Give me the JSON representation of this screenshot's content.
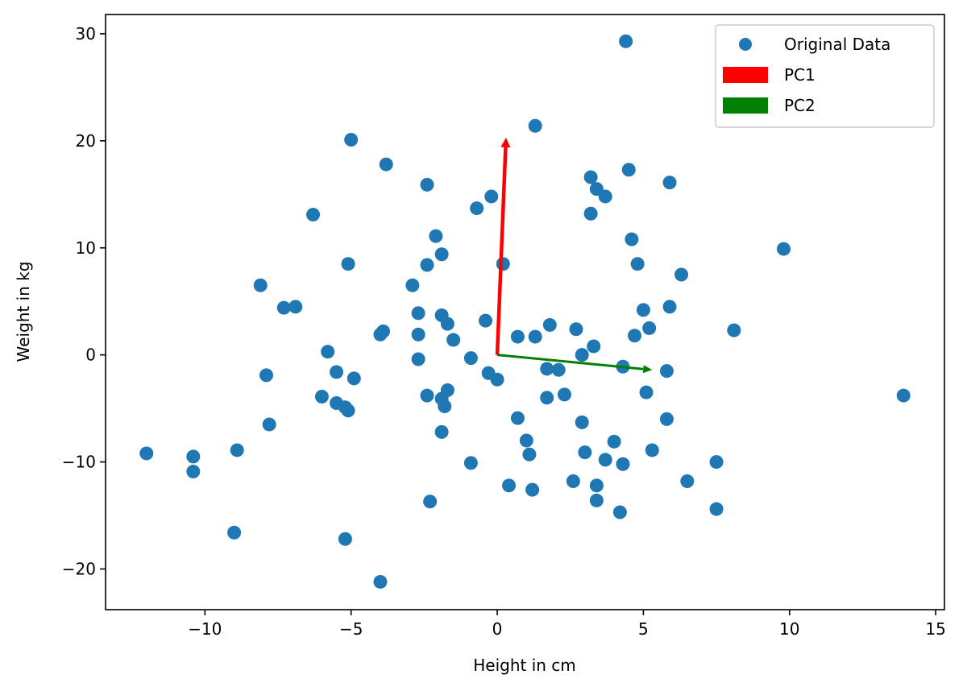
{
  "chart_data": {
    "type": "scatter",
    "xlabel": "Height in cm",
    "ylabel": "Weight in kg",
    "xlim": [
      -13.4,
      15.3
    ],
    "ylim": [
      -23.8,
      31.8
    ],
    "xticks": [
      -10,
      -5,
      0,
      5,
      10,
      15
    ],
    "yticks": [
      -20,
      -10,
      0,
      10,
      20,
      30
    ],
    "grid": false,
    "legend_position": "top-right",
    "colors": {
      "points": "#1f77b4",
      "pc1": "#ff0000",
      "pc2": "#008000"
    },
    "series": [
      {
        "name": "Original Data",
        "points": [
          [
            4.4,
            29.3
          ],
          [
            1.3,
            21.4
          ],
          [
            -5.0,
            20.1
          ],
          [
            -3.8,
            17.8
          ],
          [
            4.5,
            17.3
          ],
          [
            3.2,
            16.6
          ],
          [
            5.9,
            16.1
          ],
          [
            -2.4,
            15.9
          ],
          [
            3.4,
            15.5
          ],
          [
            3.7,
            14.8
          ],
          [
            -0.2,
            14.8
          ],
          [
            -0.7,
            13.7
          ],
          [
            3.2,
            13.2
          ],
          [
            -6.3,
            13.1
          ],
          [
            -2.1,
            11.1
          ],
          [
            4.6,
            10.8
          ],
          [
            9.8,
            9.9
          ],
          [
            -1.9,
            9.4
          ],
          [
            -5.1,
            8.5
          ],
          [
            -2.4,
            8.4
          ],
          [
            0.2,
            8.5
          ],
          [
            4.8,
            8.5
          ],
          [
            6.3,
            7.5
          ],
          [
            -8.1,
            6.5
          ],
          [
            -2.9,
            6.5
          ],
          [
            -6.9,
            4.5
          ],
          [
            -7.3,
            4.4
          ],
          [
            5.9,
            4.5
          ],
          [
            5.0,
            4.2
          ],
          [
            -2.7,
            3.9
          ],
          [
            -1.9,
            3.7
          ],
          [
            -0.4,
            3.2
          ],
          [
            -1.7,
            2.9
          ],
          [
            1.8,
            2.8
          ],
          [
            5.2,
            2.5
          ],
          [
            2.7,
            2.4
          ],
          [
            8.1,
            2.3
          ],
          [
            -3.9,
            2.2
          ],
          [
            -4.0,
            1.9
          ],
          [
            -2.7,
            1.9
          ],
          [
            4.7,
            1.8
          ],
          [
            0.7,
            1.7
          ],
          [
            1.3,
            1.7
          ],
          [
            -1.5,
            1.4
          ],
          [
            3.3,
            0.8
          ],
          [
            -5.8,
            0.3
          ],
          [
            2.9,
            0.0
          ],
          [
            -0.9,
            -0.3
          ],
          [
            -2.7,
            -0.4
          ],
          [
            4.3,
            -1.1
          ],
          [
            1.7,
            -1.3
          ],
          [
            2.1,
            -1.4
          ],
          [
            5.8,
            -1.5
          ],
          [
            -5.5,
            -1.6
          ],
          [
            -0.3,
            -1.7
          ],
          [
            -7.9,
            -1.9
          ],
          [
            -4.9,
            -2.2
          ],
          [
            0.0,
            -2.3
          ],
          [
            5.1,
            -3.5
          ],
          [
            -1.7,
            -3.3
          ],
          [
            -2.4,
            -3.8
          ],
          [
            2.3,
            -3.7
          ],
          [
            -6.0,
            -3.9
          ],
          [
            -1.9,
            -4.1
          ],
          [
            1.7,
            -4.0
          ],
          [
            -5.5,
            -4.5
          ],
          [
            -1.8,
            -4.8
          ],
          [
            -5.2,
            -4.9
          ],
          [
            -5.1,
            -5.2
          ],
          [
            0.7,
            -5.9
          ],
          [
            5.8,
            -6.0
          ],
          [
            2.9,
            -6.3
          ],
          [
            -7.8,
            -6.5
          ],
          [
            -1.9,
            -7.2
          ],
          [
            1.0,
            -8.0
          ],
          [
            4.0,
            -8.1
          ],
          [
            3.0,
            -9.1
          ],
          [
            5.3,
            -8.9
          ],
          [
            -8.9,
            -8.9
          ],
          [
            1.1,
            -9.3
          ],
          [
            -12.0,
            -9.2
          ],
          [
            -10.4,
            -9.5
          ],
          [
            3.7,
            -9.8
          ],
          [
            -0.9,
            -10.1
          ],
          [
            7.5,
            -10.0
          ],
          [
            4.3,
            -10.2
          ],
          [
            -10.4,
            -10.9
          ],
          [
            2.6,
            -11.8
          ],
          [
            6.5,
            -11.8
          ],
          [
            0.4,
            -12.2
          ],
          [
            3.4,
            -12.2
          ],
          [
            1.2,
            -12.6
          ],
          [
            -2.3,
            -13.7
          ],
          [
            3.4,
            -13.6
          ],
          [
            7.5,
            -14.4
          ],
          [
            4.2,
            -14.7
          ],
          [
            -9.0,
            -16.6
          ],
          [
            -5.2,
            -17.2
          ],
          [
            -4.0,
            -21.2
          ],
          [
            13.9,
            -3.8
          ]
        ]
      },
      {
        "name": "PC1",
        "vector": [
          0.3,
          20.3
        ]
      },
      {
        "name": "PC2",
        "vector": [
          5.3,
          -1.4
        ]
      }
    ]
  }
}
